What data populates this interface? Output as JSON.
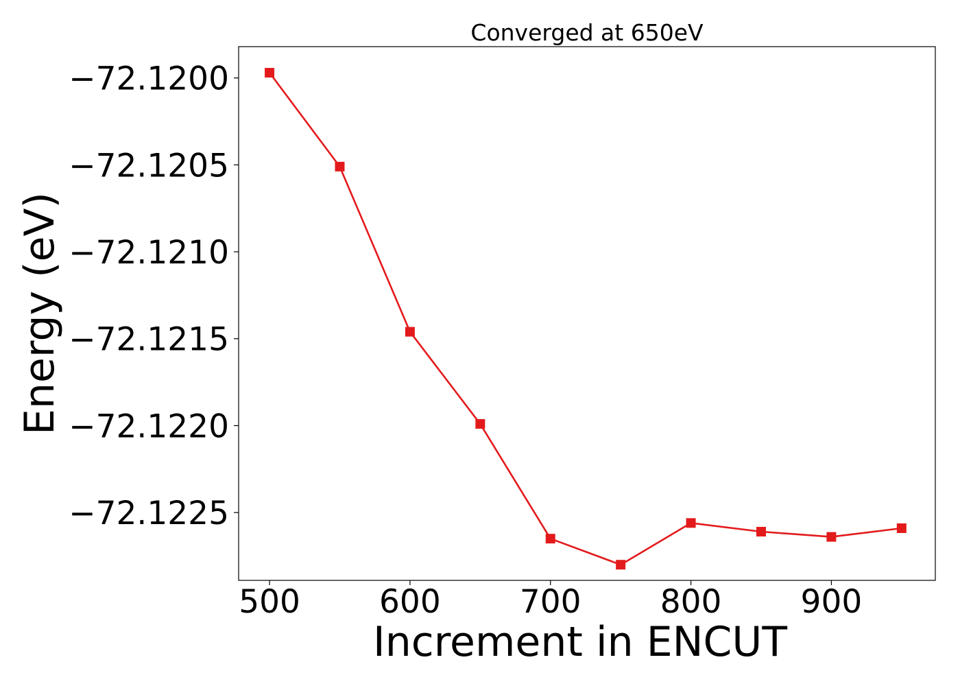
{
  "chart_data": {
    "type": "line",
    "title": "Converged at 650eV",
    "xlabel": "Increment in ENCUT",
    "ylabel": "Energy (eV)",
    "x": [
      500,
      550,
      600,
      650,
      700,
      750,
      800,
      850,
      900,
      950
    ],
    "series": [
      {
        "values": [
          -72.11997,
          -72.12051,
          -72.12146,
          -72.12199,
          -72.12265,
          -72.1228,
          -72.12256,
          -72.12261,
          -72.12264,
          -72.12259
        ],
        "color": "#e31a1c",
        "marker": "square"
      }
    ],
    "xlim": [
      478,
      974
    ],
    "ylim": [
      -72.12289,
      -72.11982
    ],
    "xticks": [
      500,
      600,
      700,
      800,
      900
    ],
    "xtick_labels": [
      "500",
      "600",
      "700",
      "800",
      "900"
    ],
    "yticks": [
      -72.12,
      -72.1205,
      -72.121,
      -72.1215,
      -72.122,
      -72.1225
    ],
    "ytick_labels": [
      "−72.1200",
      "−72.1205",
      "−72.1210",
      "−72.1215",
      "−72.1220",
      "−72.1225"
    ],
    "grid": false,
    "legend": "none"
  }
}
